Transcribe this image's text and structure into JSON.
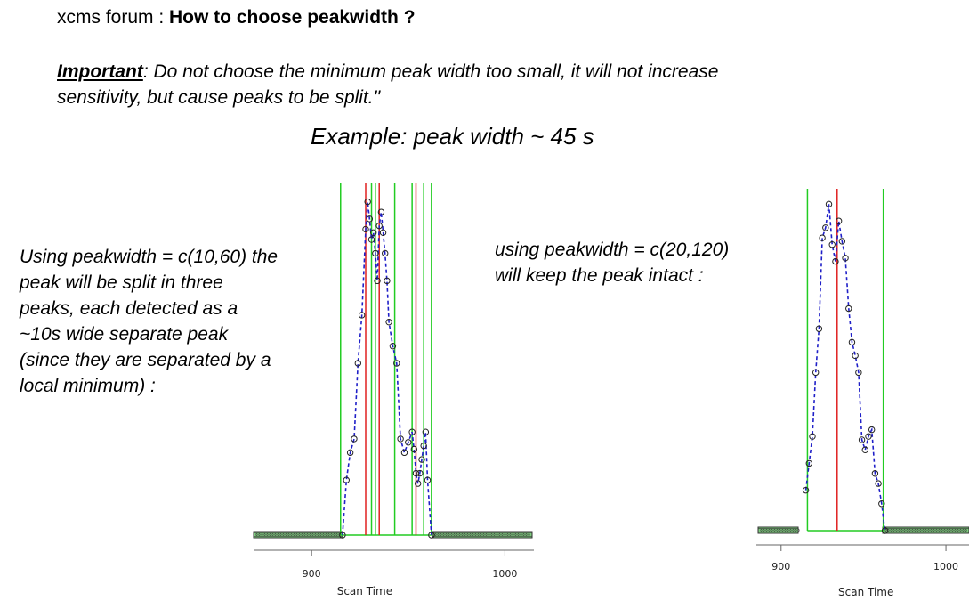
{
  "header": {
    "prefix": "xcms forum : ",
    "title": "How to choose peakwidth ?"
  },
  "note": {
    "important_label": "Important",
    "line1_rest": ": Do not choose the minimum peak width too small, it will not increase",
    "line2": "sensitivity, but cause peaks to be split.\""
  },
  "example": "Example: peak width ~ 45 s",
  "left_desc": [
    "Using peakwidth = c(10,60) the",
    "peak will be split in three",
    "peaks, each detected as a",
    "~10s wide separate peak",
    "(since they are separated by a",
    "local minimum) :"
  ],
  "right_desc": [
    "using peakwidth = c(20,120)",
    "will keep the peak intact :"
  ],
  "colors": {
    "trace": "#1f1fc8",
    "boundary": "#22cc22",
    "apex": "#e02020",
    "baseline": "#22aa22"
  },
  "chart_data": [
    {
      "type": "line",
      "xlabel": "Scan Time",
      "xticks": [
        900,
        1000
      ],
      "xlim": [
        870,
        1015
      ],
      "ylim": [
        0,
        1
      ],
      "x": [
        916,
        918,
        920,
        922,
        924,
        926,
        928,
        929,
        930,
        931,
        932,
        933,
        934,
        935,
        936,
        937,
        938,
        939,
        940,
        942,
        944,
        946,
        948,
        950,
        952,
        953,
        954,
        955,
        956,
        957,
        958,
        959,
        960,
        962
      ],
      "y": [
        0.0,
        0.16,
        0.24,
        0.28,
        0.5,
        0.64,
        0.89,
        0.97,
        0.92,
        0.86,
        0.88,
        0.82,
        0.74,
        0.9,
        0.94,
        0.88,
        0.82,
        0.74,
        0.62,
        0.55,
        0.5,
        0.28,
        0.24,
        0.27,
        0.3,
        0.25,
        0.18,
        0.15,
        0.18,
        0.22,
        0.26,
        0.3,
        0.16,
        0.0
      ],
      "boundaries": [
        915,
        931,
        933,
        943,
        952,
        958,
        962
      ],
      "apexes": [
        928,
        935,
        954
      ],
      "baseline": 0
    },
    {
      "type": "line",
      "xlabel": "Scan Time",
      "xticks": [
        900,
        1000
      ],
      "xlim": [
        885,
        1014
      ],
      "ylim": [
        0,
        1
      ],
      "x": [
        915,
        917,
        919,
        921,
        923,
        925,
        927,
        929,
        931,
        933,
        935,
        937,
        939,
        941,
        943,
        945,
        947,
        949,
        951,
        953,
        955,
        957,
        959,
        961,
        963
      ],
      "y": [
        0.12,
        0.2,
        0.28,
        0.47,
        0.6,
        0.87,
        0.9,
        0.97,
        0.85,
        0.8,
        0.92,
        0.86,
        0.81,
        0.66,
        0.56,
        0.52,
        0.47,
        0.27,
        0.24,
        0.28,
        0.3,
        0.17,
        0.14,
        0.08,
        0.0
      ],
      "boundaries": [
        916,
        962
      ],
      "apexes": [
        934
      ],
      "baseline": 0
    }
  ]
}
